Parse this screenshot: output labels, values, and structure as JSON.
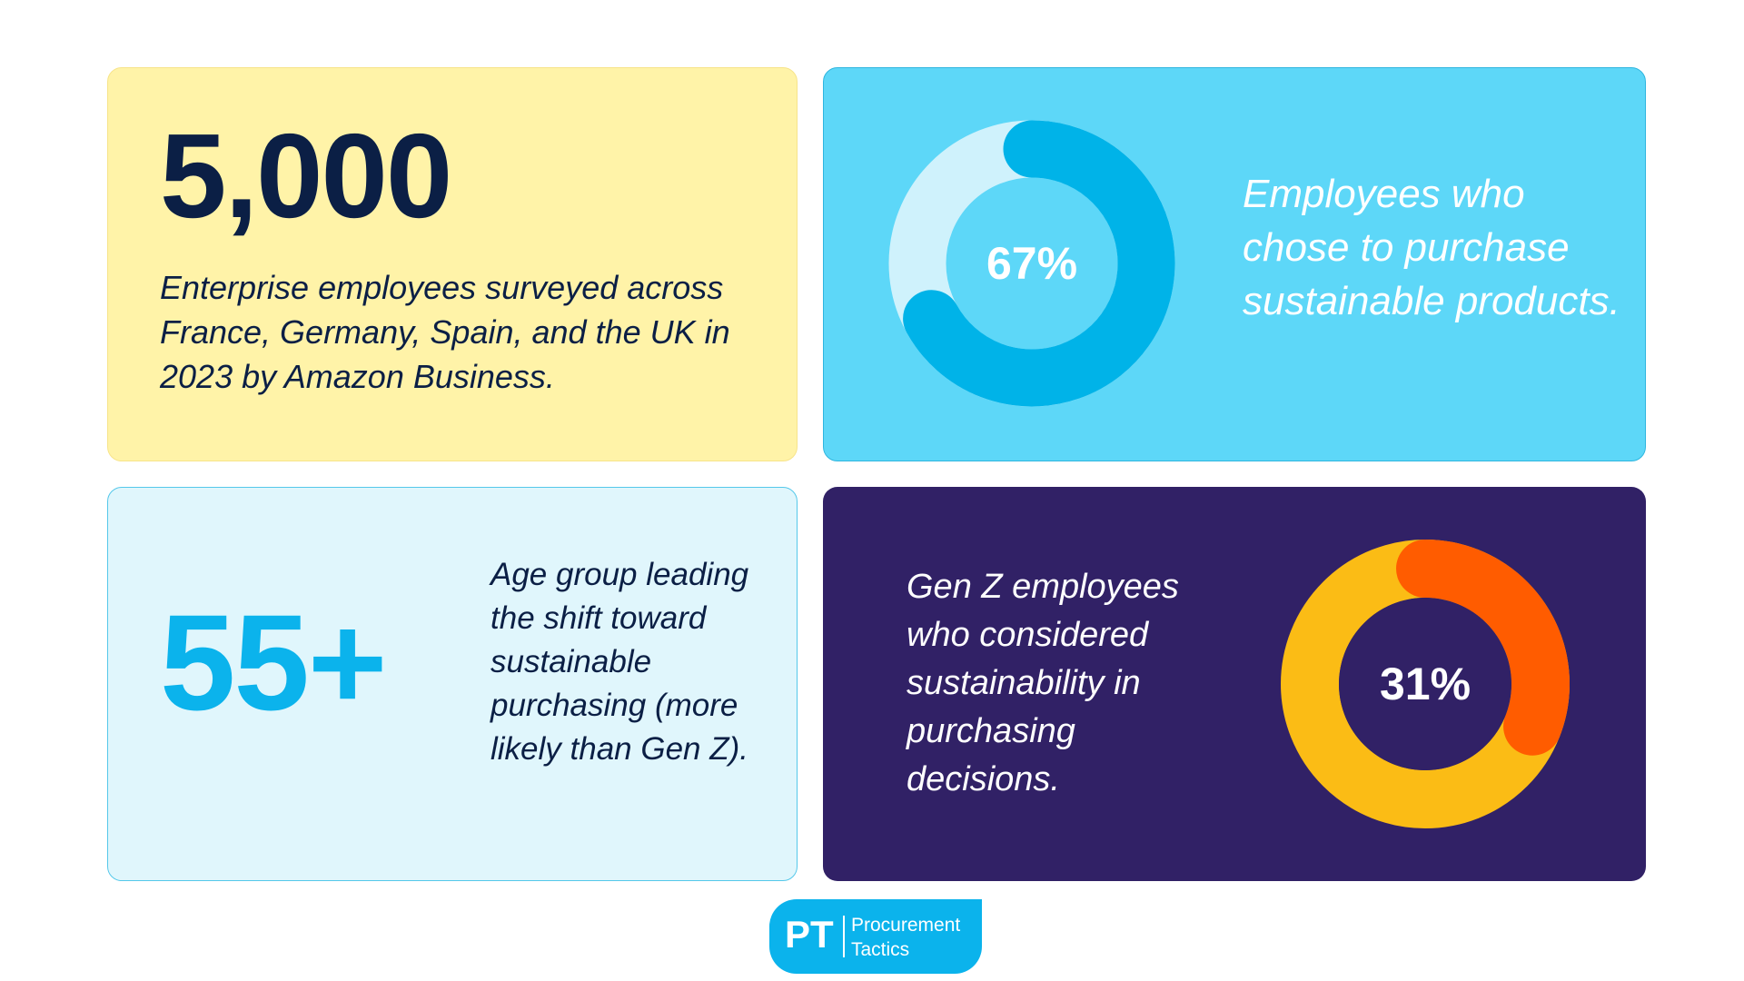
{
  "total_card": {
    "number": "5,000",
    "description": "Enterprise employees surveyed across France, Germany, Spain, and the UK in 2023 by Amazon Business."
  },
  "sustainable_card": {
    "percent_label": "67%",
    "percent_value": 67,
    "description": "Employees who chose to purchase sustainable products.",
    "colors": {
      "track": "#CFF2FC",
      "fill": "#00B3E8",
      "hole": "#5DD7F8",
      "text": "#ffffff"
    }
  },
  "age_card": {
    "number": "55+",
    "description": "Age group leading the shift toward sustainable purchasing (more likely than Gen Z)."
  },
  "genz_card": {
    "percent_label": "31%",
    "percent_value": 31,
    "description": "Gen Z employees who considered sustainability in purchasing decisions.",
    "colors": {
      "track": "#FBBC15",
      "fill": "#FF5C00",
      "hole": "#312166",
      "text": "#ffffff"
    }
  },
  "logo": {
    "initials": "PT",
    "line1": "Procurement",
    "line2": "Tactics"
  }
}
